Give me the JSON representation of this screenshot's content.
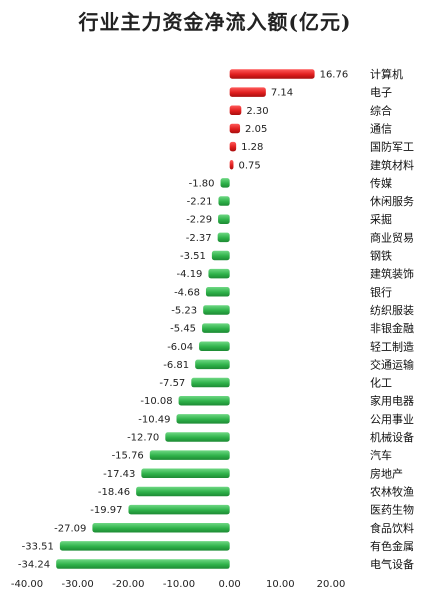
{
  "title": "行业主力资金净流入额(亿元)",
  "colors": {
    "positive": "#e01e1e",
    "negative": "#2fb24a"
  },
  "chart_data": {
    "type": "bar",
    "orientation": "horizontal",
    "title": "行业主力资金净流入额(亿元)",
    "categories": [
      "计算机",
      "电子",
      "综合",
      "通信",
      "国防军工",
      "建筑材料",
      "传媒",
      "休闲服务",
      "采掘",
      "商业贸易",
      "钢铁",
      "建筑装饰",
      "银行",
      "纺织服装",
      "非银金融",
      "轻工制造",
      "交通运输",
      "化工",
      "家用电器",
      "公用事业",
      "机械设备",
      "汽车",
      "房地产",
      "农林牧渔",
      "医药生物",
      "食品饮料",
      "有色金属",
      "电气设备"
    ],
    "values": [
      16.76,
      7.14,
      2.3,
      2.05,
      1.28,
      0.75,
      -1.8,
      -2.21,
      -2.29,
      -2.37,
      -3.51,
      -4.19,
      -4.68,
      -5.23,
      -5.45,
      -6.04,
      -6.81,
      -7.57,
      -10.08,
      -10.49,
      -12.7,
      -15.76,
      -17.43,
      -18.46,
      -19.97,
      -27.09,
      -33.51,
      -34.24
    ],
    "value_labels": [
      "16.76",
      "7.14",
      "2.30",
      "2.05",
      "1.28",
      "0.75",
      "-1.80",
      "-2.21",
      "-2.29",
      "-2.37",
      "-3.51",
      "-4.19",
      "-4.68",
      "-5.23",
      "-5.45",
      "-6.04",
      "-6.81",
      "-7.57",
      "-10.08",
      "-10.49",
      "-12.70",
      "-15.76",
      "-17.43",
      "-18.46",
      "-19.97",
      "-27.09",
      "-33.51",
      "-34.24"
    ],
    "xlim": [
      -40,
      20
    ],
    "xticks": [
      -40,
      -30,
      -20,
      -10,
      0,
      10,
      20
    ],
    "xtick_labels": [
      "-40.00",
      "-30.00",
      "-20.00",
      "-10.00",
      "0.00",
      "10.00",
      "20.00"
    ],
    "grid": false
  }
}
